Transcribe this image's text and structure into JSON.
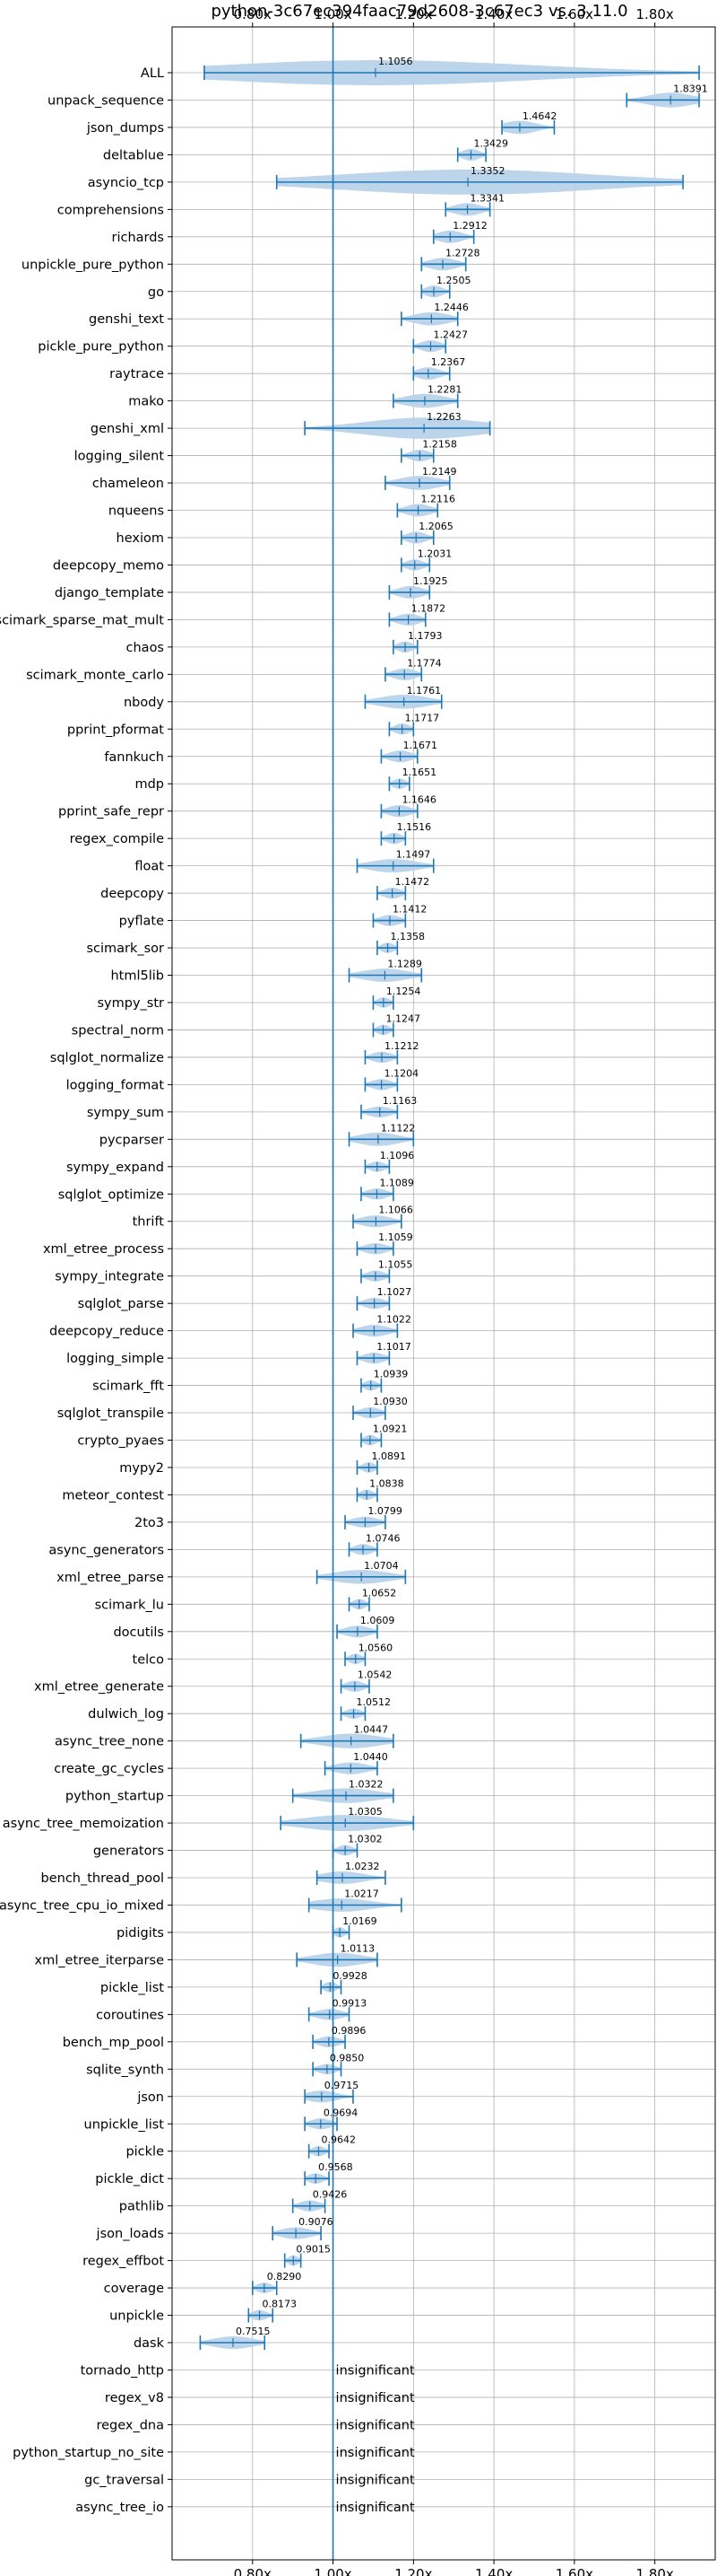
{
  "chart_data": {
    "type": "violin",
    "title": "python-3c67ec394faac79d2608-3c67ec3 vs. 3.11.0",
    "x_ticks": [
      "0.80x",
      "1.00x",
      "1.20x",
      "1.40x",
      "1.60x",
      "1.80x"
    ],
    "x_tick_values": [
      0.8,
      1.0,
      1.2,
      1.4,
      1.6,
      1.8
    ],
    "xlim": [
      0.6,
      1.95
    ],
    "reference_line": 1.0,
    "grid": true,
    "colors": {
      "violin": "#b9d3ea",
      "line": "#1f77b4"
    },
    "insignificant_text": "insignificant",
    "benchmarks": [
      {
        "name": "ALL",
        "value": 1.1056,
        "label": "1.1056",
        "lo": 0.68,
        "hi": 1.91,
        "spread": 0.25
      },
      {
        "name": "unpack_sequence",
        "value": 1.8391,
        "label": "1.8391",
        "lo": 1.73,
        "hi": 1.91,
        "spread": 0.08
      },
      {
        "name": "json_dumps",
        "value": 1.4642,
        "label": "1.4642",
        "lo": 1.42,
        "hi": 1.55,
        "spread": 0.06
      },
      {
        "name": "deltablue",
        "value": 1.3429,
        "label": "1.3429",
        "lo": 1.31,
        "hi": 1.38,
        "spread": 0.04
      },
      {
        "name": "asyncio_tcp",
        "value": 1.3352,
        "label": "1.3352",
        "lo": 0.86,
        "hi": 1.87,
        "spread": 0.5
      },
      {
        "name": "comprehensions",
        "value": 1.3341,
        "label": "1.3341",
        "lo": 1.28,
        "hi": 1.39,
        "spread": 0.05
      },
      {
        "name": "richards",
        "value": 1.2912,
        "label": "1.2912",
        "lo": 1.25,
        "hi": 1.35,
        "spread": 0.05
      },
      {
        "name": "unpickle_pure_python",
        "value": 1.2728,
        "label": "1.2728",
        "lo": 1.22,
        "hi": 1.33,
        "spread": 0.05
      },
      {
        "name": "go",
        "value": 1.2505,
        "label": "1.2505",
        "lo": 1.22,
        "hi": 1.29,
        "spread": 0.04
      },
      {
        "name": "genshi_text",
        "value": 1.2446,
        "label": "1.2446",
        "lo": 1.17,
        "hi": 1.31,
        "spread": 0.06
      },
      {
        "name": "pickle_pure_python",
        "value": 1.2427,
        "label": "1.2427",
        "lo": 1.2,
        "hi": 1.28,
        "spread": 0.04
      },
      {
        "name": "raytrace",
        "value": 1.2367,
        "label": "1.2367",
        "lo": 1.2,
        "hi": 1.29,
        "spread": 0.05
      },
      {
        "name": "mako",
        "value": 1.2281,
        "label": "1.2281",
        "lo": 1.15,
        "hi": 1.31,
        "spread": 0.07
      },
      {
        "name": "genshi_xml",
        "value": 1.2263,
        "label": "1.2263",
        "lo": 0.93,
        "hi": 1.39,
        "spread": 0.17
      },
      {
        "name": "logging_silent",
        "value": 1.2158,
        "label": "1.2158",
        "lo": 1.17,
        "hi": 1.25,
        "spread": 0.04
      },
      {
        "name": "chameleon",
        "value": 1.2149,
        "label": "1.2149",
        "lo": 1.13,
        "hi": 1.29,
        "spread": 0.07
      },
      {
        "name": "nqueens",
        "value": 1.2116,
        "label": "1.2116",
        "lo": 1.16,
        "hi": 1.26,
        "spread": 0.05
      },
      {
        "name": "hexiom",
        "value": 1.2065,
        "label": "1.2065",
        "lo": 1.17,
        "hi": 1.25,
        "spread": 0.04
      },
      {
        "name": "deepcopy_memo",
        "value": 1.2031,
        "label": "1.2031",
        "lo": 1.17,
        "hi": 1.24,
        "spread": 0.03
      },
      {
        "name": "django_template",
        "value": 1.1925,
        "label": "1.1925",
        "lo": 1.14,
        "hi": 1.24,
        "spread": 0.05
      },
      {
        "name": "scimark_sparse_mat_mult",
        "value": 1.1872,
        "label": "1.1872",
        "lo": 1.14,
        "hi": 1.23,
        "spread": 0.04
      },
      {
        "name": "chaos",
        "value": 1.1793,
        "label": "1.1793",
        "lo": 1.15,
        "hi": 1.21,
        "spread": 0.03
      },
      {
        "name": "scimark_monte_carlo",
        "value": 1.1774,
        "label": "1.1774",
        "lo": 1.13,
        "hi": 1.22,
        "spread": 0.04
      },
      {
        "name": "nbody",
        "value": 1.1761,
        "label": "1.1761",
        "lo": 1.08,
        "hi": 1.27,
        "spread": 0.07
      },
      {
        "name": "pprint_pformat",
        "value": 1.1717,
        "label": "1.1717",
        "lo": 1.14,
        "hi": 1.2,
        "spread": 0.03
      },
      {
        "name": "fannkuch",
        "value": 1.1671,
        "label": "1.1671",
        "lo": 1.12,
        "hi": 1.21,
        "spread": 0.04
      },
      {
        "name": "mdp",
        "value": 1.1651,
        "label": "1.1651",
        "lo": 1.14,
        "hi": 1.19,
        "spread": 0.02
      },
      {
        "name": "pprint_safe_repr",
        "value": 1.1646,
        "label": "1.1646",
        "lo": 1.12,
        "hi": 1.21,
        "spread": 0.04
      },
      {
        "name": "regex_compile",
        "value": 1.1516,
        "label": "1.1516",
        "lo": 1.12,
        "hi": 1.18,
        "spread": 0.03
      },
      {
        "name": "float",
        "value": 1.1497,
        "label": "1.1497",
        "lo": 1.06,
        "hi": 1.25,
        "spread": 0.06
      },
      {
        "name": "deepcopy",
        "value": 1.1472,
        "label": "1.1472",
        "lo": 1.11,
        "hi": 1.18,
        "spread": 0.03
      },
      {
        "name": "pyflate",
        "value": 1.1412,
        "label": "1.1412",
        "lo": 1.1,
        "hi": 1.18,
        "spread": 0.03
      },
      {
        "name": "scimark_sor",
        "value": 1.1358,
        "label": "1.1358",
        "lo": 1.11,
        "hi": 1.16,
        "spread": 0.02
      },
      {
        "name": "html5lib",
        "value": 1.1289,
        "label": "1.1289",
        "lo": 1.04,
        "hi": 1.22,
        "spread": 0.06
      },
      {
        "name": "sympy_str",
        "value": 1.1254,
        "label": "1.1254",
        "lo": 1.1,
        "hi": 1.15,
        "spread": 0.02
      },
      {
        "name": "spectral_norm",
        "value": 1.1247,
        "label": "1.1247",
        "lo": 1.1,
        "hi": 1.15,
        "spread": 0.02
      },
      {
        "name": "sqlglot_normalize",
        "value": 1.1212,
        "label": "1.1212",
        "lo": 1.08,
        "hi": 1.16,
        "spread": 0.03
      },
      {
        "name": "logging_format",
        "value": 1.1204,
        "label": "1.1204",
        "lo": 1.08,
        "hi": 1.16,
        "spread": 0.03
      },
      {
        "name": "sympy_sum",
        "value": 1.1163,
        "label": "1.1163",
        "lo": 1.07,
        "hi": 1.16,
        "spread": 0.03
      },
      {
        "name": "pycparser",
        "value": 1.1122,
        "label": "1.1122",
        "lo": 1.04,
        "hi": 1.2,
        "spread": 0.06
      },
      {
        "name": "sympy_expand",
        "value": 1.1096,
        "label": "1.1096",
        "lo": 1.08,
        "hi": 1.14,
        "spread": 0.02
      },
      {
        "name": "sqlglot_optimize",
        "value": 1.1089,
        "label": "1.1089",
        "lo": 1.07,
        "hi": 1.15,
        "spread": 0.03
      },
      {
        "name": "thrift",
        "value": 1.1066,
        "label": "1.1066",
        "lo": 1.05,
        "hi": 1.17,
        "spread": 0.04
      },
      {
        "name": "xml_etree_process",
        "value": 1.1059,
        "label": "1.1059",
        "lo": 1.06,
        "hi": 1.15,
        "spread": 0.03
      },
      {
        "name": "sympy_integrate",
        "value": 1.1055,
        "label": "1.1055",
        "lo": 1.07,
        "hi": 1.14,
        "spread": 0.03
      },
      {
        "name": "sqlglot_parse",
        "value": 1.1027,
        "label": "1.1027",
        "lo": 1.06,
        "hi": 1.14,
        "spread": 0.03
      },
      {
        "name": "deepcopy_reduce",
        "value": 1.1022,
        "label": "1.1022",
        "lo": 1.05,
        "hi": 1.16,
        "spread": 0.04
      },
      {
        "name": "logging_simple",
        "value": 1.1017,
        "label": "1.1017",
        "lo": 1.06,
        "hi": 1.14,
        "spread": 0.03
      },
      {
        "name": "scimark_fft",
        "value": 1.0939,
        "label": "1.0939",
        "lo": 1.07,
        "hi": 1.12,
        "spread": 0.02
      },
      {
        "name": "sqlglot_transpile",
        "value": 1.093,
        "label": "1.0930",
        "lo": 1.05,
        "hi": 1.13,
        "spread": 0.03
      },
      {
        "name": "crypto_pyaes",
        "value": 1.0921,
        "label": "1.0921",
        "lo": 1.07,
        "hi": 1.12,
        "spread": 0.02
      },
      {
        "name": "mypy2",
        "value": 1.0891,
        "label": "1.0891",
        "lo": 1.06,
        "hi": 1.11,
        "spread": 0.02
      },
      {
        "name": "meteor_contest",
        "value": 1.0838,
        "label": "1.0838",
        "lo": 1.06,
        "hi": 1.11,
        "spread": 0.02
      },
      {
        "name": "2to3",
        "value": 1.0799,
        "label": "1.0799",
        "lo": 1.03,
        "hi": 1.13,
        "spread": 0.03
      },
      {
        "name": "async_generators",
        "value": 1.0746,
        "label": "1.0746",
        "lo": 1.04,
        "hi": 1.11,
        "spread": 0.03
      },
      {
        "name": "xml_etree_parse",
        "value": 1.0704,
        "label": "1.0704",
        "lo": 0.96,
        "hi": 1.18,
        "spread": 0.07
      },
      {
        "name": "scimark_lu",
        "value": 1.0652,
        "label": "1.0652",
        "lo": 1.04,
        "hi": 1.09,
        "spread": 0.02
      },
      {
        "name": "docutils",
        "value": 1.0609,
        "label": "1.0609",
        "lo": 1.01,
        "hi": 1.11,
        "spread": 0.04
      },
      {
        "name": "telco",
        "value": 1.056,
        "label": "1.0560",
        "lo": 1.03,
        "hi": 1.08,
        "spread": 0.02
      },
      {
        "name": "xml_etree_generate",
        "value": 1.0542,
        "label": "1.0542",
        "lo": 1.02,
        "hi": 1.09,
        "spread": 0.03
      },
      {
        "name": "dulwich_log",
        "value": 1.0512,
        "label": "1.0512",
        "lo": 1.02,
        "hi": 1.08,
        "spread": 0.02
      },
      {
        "name": "async_tree_none",
        "value": 1.0447,
        "label": "1.0447",
        "lo": 0.92,
        "hi": 1.15,
        "spread": 0.08
      },
      {
        "name": "create_gc_cycles",
        "value": 1.044,
        "label": "1.0440",
        "lo": 0.98,
        "hi": 1.11,
        "spread": 0.04
      },
      {
        "name": "python_startup",
        "value": 1.0322,
        "label": "1.0322",
        "lo": 0.9,
        "hi": 1.15,
        "spread": 0.08
      },
      {
        "name": "async_tree_memoization",
        "value": 1.0305,
        "label": "1.0305",
        "lo": 0.87,
        "hi": 1.2,
        "spread": 0.1
      },
      {
        "name": "generators",
        "value": 1.0302,
        "label": "1.0302",
        "lo": 1.0,
        "hi": 1.06,
        "spread": 0.02
      },
      {
        "name": "bench_thread_pool",
        "value": 1.0232,
        "label": "1.0232",
        "lo": 0.96,
        "hi": 1.13,
        "spread": 0.05
      },
      {
        "name": "async_tree_cpu_io_mixed",
        "value": 1.0217,
        "label": "1.0217",
        "lo": 0.94,
        "hi": 1.17,
        "spread": 0.06
      },
      {
        "name": "pidigits",
        "value": 1.0169,
        "label": "1.0169",
        "lo": 1.0,
        "hi": 1.04,
        "spread": 0.02
      },
      {
        "name": "xml_etree_iterparse",
        "value": 1.0113,
        "label": "1.0113",
        "lo": 0.91,
        "hi": 1.11,
        "spread": 0.07
      },
      {
        "name": "pickle_list",
        "value": 0.9928,
        "label": "0.9928",
        "lo": 0.97,
        "hi": 1.02,
        "spread": 0.02
      },
      {
        "name": "coroutines",
        "value": 0.9913,
        "label": "0.9913",
        "lo": 0.94,
        "hi": 1.04,
        "spread": 0.03
      },
      {
        "name": "bench_mp_pool",
        "value": 0.9896,
        "label": "0.9896",
        "lo": 0.95,
        "hi": 1.03,
        "spread": 0.03
      },
      {
        "name": "sqlite_synth",
        "value": 0.985,
        "label": "0.9850",
        "lo": 0.95,
        "hi": 1.02,
        "spread": 0.02
      },
      {
        "name": "json",
        "value": 0.9715,
        "label": "0.9715",
        "lo": 0.93,
        "hi": 1.05,
        "spread": 0.04
      },
      {
        "name": "unpickle_list",
        "value": 0.9694,
        "label": "0.9694",
        "lo": 0.93,
        "hi": 1.01,
        "spread": 0.03
      },
      {
        "name": "pickle",
        "value": 0.9642,
        "label": "0.9642",
        "lo": 0.94,
        "hi": 0.99,
        "spread": 0.02
      },
      {
        "name": "pickle_dict",
        "value": 0.9568,
        "label": "0.9568",
        "lo": 0.93,
        "hi": 0.99,
        "spread": 0.02
      },
      {
        "name": "pathlib",
        "value": 0.9426,
        "label": "0.9426",
        "lo": 0.9,
        "hi": 0.98,
        "spread": 0.03
      },
      {
        "name": "json_loads",
        "value": 0.9076,
        "label": "0.9076",
        "lo": 0.85,
        "hi": 0.97,
        "spread": 0.04
      },
      {
        "name": "regex_effbot",
        "value": 0.9015,
        "label": "0.9015",
        "lo": 0.88,
        "hi": 0.92,
        "spread": 0.02
      },
      {
        "name": "coverage",
        "value": 0.829,
        "label": "0.8290",
        "lo": 0.8,
        "hi": 0.86,
        "spread": 0.02
      },
      {
        "name": "unpickle",
        "value": 0.8173,
        "label": "0.8173",
        "lo": 0.79,
        "hi": 0.85,
        "spread": 0.02
      },
      {
        "name": "dask",
        "value": 0.7515,
        "label": "0.7515",
        "lo": 0.67,
        "hi": 0.83,
        "spread": 0.05
      },
      {
        "name": "tornado_http",
        "value": null,
        "label": null
      },
      {
        "name": "regex_v8",
        "value": null,
        "label": null
      },
      {
        "name": "regex_dna",
        "value": null,
        "label": null
      },
      {
        "name": "python_startup_no_site",
        "value": null,
        "label": null
      },
      {
        "name": "gc_traversal",
        "value": null,
        "label": null
      },
      {
        "name": "async_tree_io",
        "value": null,
        "label": null
      }
    ]
  }
}
